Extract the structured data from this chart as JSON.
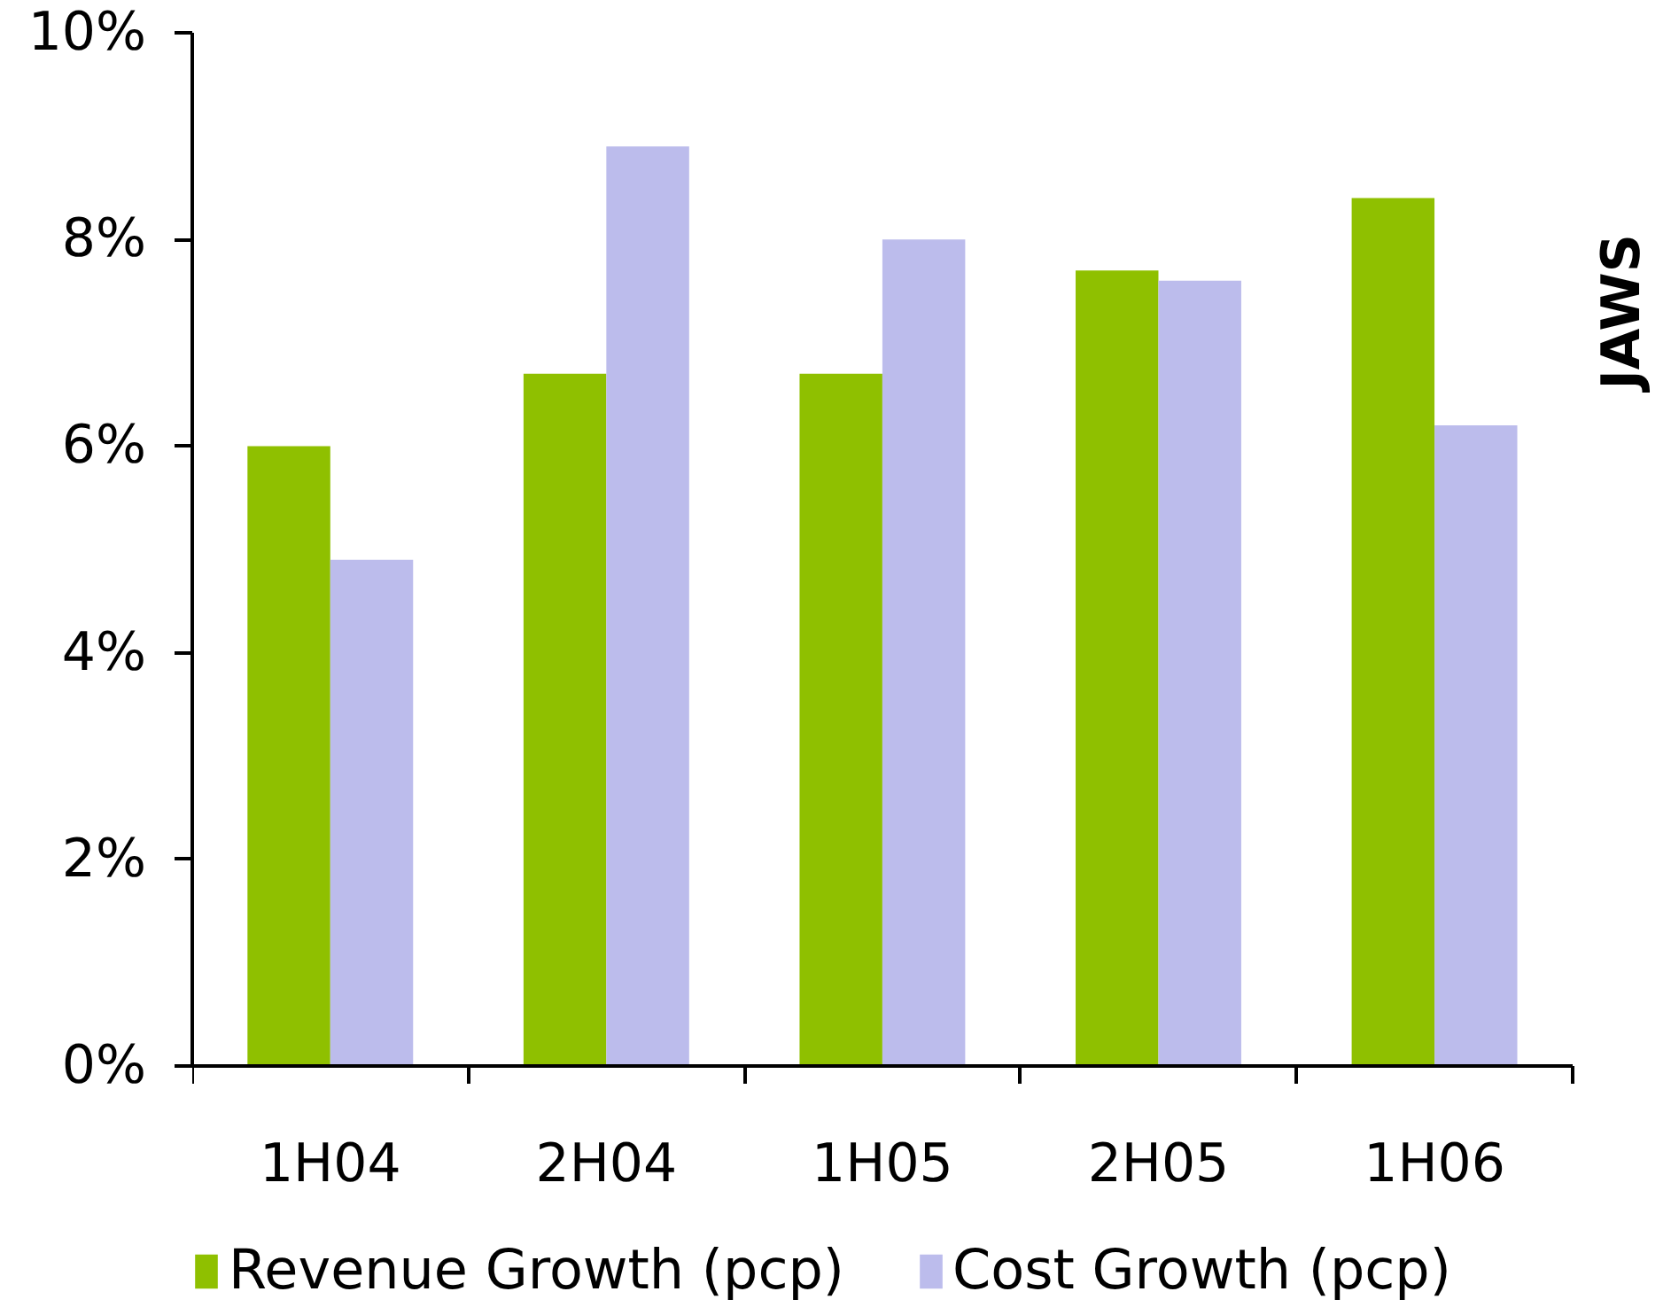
{
  "chart_data": {
    "type": "bar",
    "categories": [
      "1H04",
      "2H04",
      "1H05",
      "2H05",
      "1H06"
    ],
    "series": [
      {
        "name": "Revenue Growth (pcp)",
        "color": "#8fc000",
        "values": [
          6.0,
          6.7,
          6.7,
          7.7,
          8.4
        ]
      },
      {
        "name": "Cost Growth (pcp)",
        "color": "#bcbcec",
        "values": [
          4.9,
          8.9,
          8.0,
          7.6,
          6.2
        ]
      }
    ],
    "ylim": [
      0,
      10
    ],
    "yticks": [
      {
        "value": 0,
        "label": "0%"
      },
      {
        "value": 2,
        "label": "2%"
      },
      {
        "value": 4,
        "label": "4%"
      },
      {
        "value": 6,
        "label": "6%"
      },
      {
        "value": 8,
        "label": "8%"
      },
      {
        "value": 10,
        "label": "10%"
      }
    ],
    "grid": false,
    "legend": "bottom",
    "annotations": [
      "JAWS"
    ]
  }
}
